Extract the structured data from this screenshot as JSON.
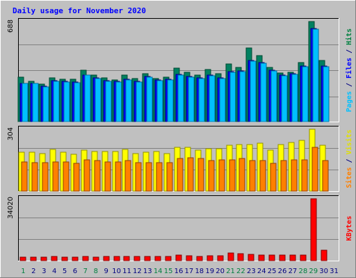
{
  "chart_data": {
    "type": "bar",
    "title": "Daily usage for November 2020",
    "x": [
      "1",
      "2",
      "3",
      "4",
      "5",
      "6",
      "7",
      "8",
      "9",
      "10",
      "11",
      "12",
      "13",
      "14",
      "15",
      "16",
      "17",
      "18",
      "19",
      "20",
      "21",
      "22",
      "23",
      "24",
      "25",
      "26",
      "27",
      "28",
      "29",
      "30",
      "31"
    ],
    "weekend_days": [
      "1",
      "7",
      "8",
      "14",
      "15",
      "21",
      "22",
      "28",
      "29"
    ],
    "panels": [
      {
        "id": "hits_files_pages",
        "max_label": "688",
        "ylim": [
          0,
          688
        ],
        "label_parts": [
          {
            "text": "Pages",
            "color": "#00C0FF"
          },
          {
            "text": " / ",
            "color": "#000080"
          },
          {
            "text": "Files",
            "color": "#0000FF"
          },
          {
            "text": " / ",
            "color": "#000080"
          },
          {
            "text": "Hits",
            "color": "#008040"
          }
        ],
        "series": [
          {
            "name": "Hits",
            "color": "#008060",
            "values": [
              305,
              275,
              260,
              300,
              290,
              290,
              355,
              320,
              300,
              285,
              320,
              295,
              330,
              295,
              305,
              370,
              340,
              320,
              360,
              330,
              395,
              375,
              505,
              455,
              375,
              335,
              340,
              405,
              688,
              420,
              0
            ]
          },
          {
            "name": "Files",
            "color": "#0000FF",
            "values": [
              265,
              265,
              245,
              280,
              275,
              270,
              320,
              300,
              280,
              275,
              290,
              275,
              310,
              285,
              290,
              325,
              310,
              300,
              320,
              300,
              345,
              350,
              420,
              405,
              355,
              320,
              330,
              380,
              640,
              380,
              0
            ]
          },
          {
            "name": "Pages",
            "color": "#00C0FF",
            "values": [
              262,
              262,
              240,
              276,
              272,
              266,
              318,
              296,
              276,
              272,
              286,
              272,
              306,
              282,
              286,
              321,
              306,
              296,
              316,
              296,
              341,
              346,
              416,
              401,
              351,
              316,
              326,
              376,
              636,
              376,
              0
            ]
          }
        ]
      },
      {
        "id": "visits_sites",
        "max_label": "304",
        "ylim": [
          0,
          304
        ],
        "label_parts": [
          {
            "text": "Sites",
            "color": "#FF8000"
          },
          {
            "text": " / ",
            "color": "#000080"
          },
          {
            "text": "Visits",
            "color": "#E0E000"
          }
        ],
        "series": [
          {
            "name": "Visits",
            "color": "#FFFF00",
            "values": [
              190,
              190,
              185,
              205,
              190,
              180,
              200,
              195,
              195,
              195,
              205,
              185,
              190,
              195,
              185,
              215,
              215,
              200,
              210,
              210,
              225,
              230,
              230,
              235,
              200,
              230,
              240,
              250,
              304,
              225,
              0
            ]
          },
          {
            "name": "Sites",
            "color": "#FF8000",
            "values": [
              145,
              140,
              140,
              145,
              145,
              135,
              155,
              150,
              145,
              145,
              150,
              140,
              140,
              140,
              140,
              160,
              165,
              160,
              150,
              155,
              155,
              160,
              150,
              150,
              135,
              150,
              155,
              155,
              215,
              150,
              0
            ]
          }
        ]
      },
      {
        "id": "kbytes",
        "max_label": "34020",
        "ylim": [
          0,
          34020
        ],
        "label_parts": [
          {
            "text": "KBytes",
            "color": "#FF0000"
          }
        ],
        "series": [
          {
            "name": "KBytes",
            "color": "#FF0000",
            "values": [
              2000,
              2000,
              1800,
              2400,
              1900,
              1800,
              2300,
              2000,
              2400,
              2200,
              2400,
              2300,
              2300,
              2400,
              2400,
              3000,
              2700,
              2400,
              2600,
              2800,
              4300,
              3900,
              3300,
              3200,
              3000,
              3200,
              3100,
              3200,
              34020,
              5600,
              0
            ]
          }
        ]
      }
    ]
  }
}
